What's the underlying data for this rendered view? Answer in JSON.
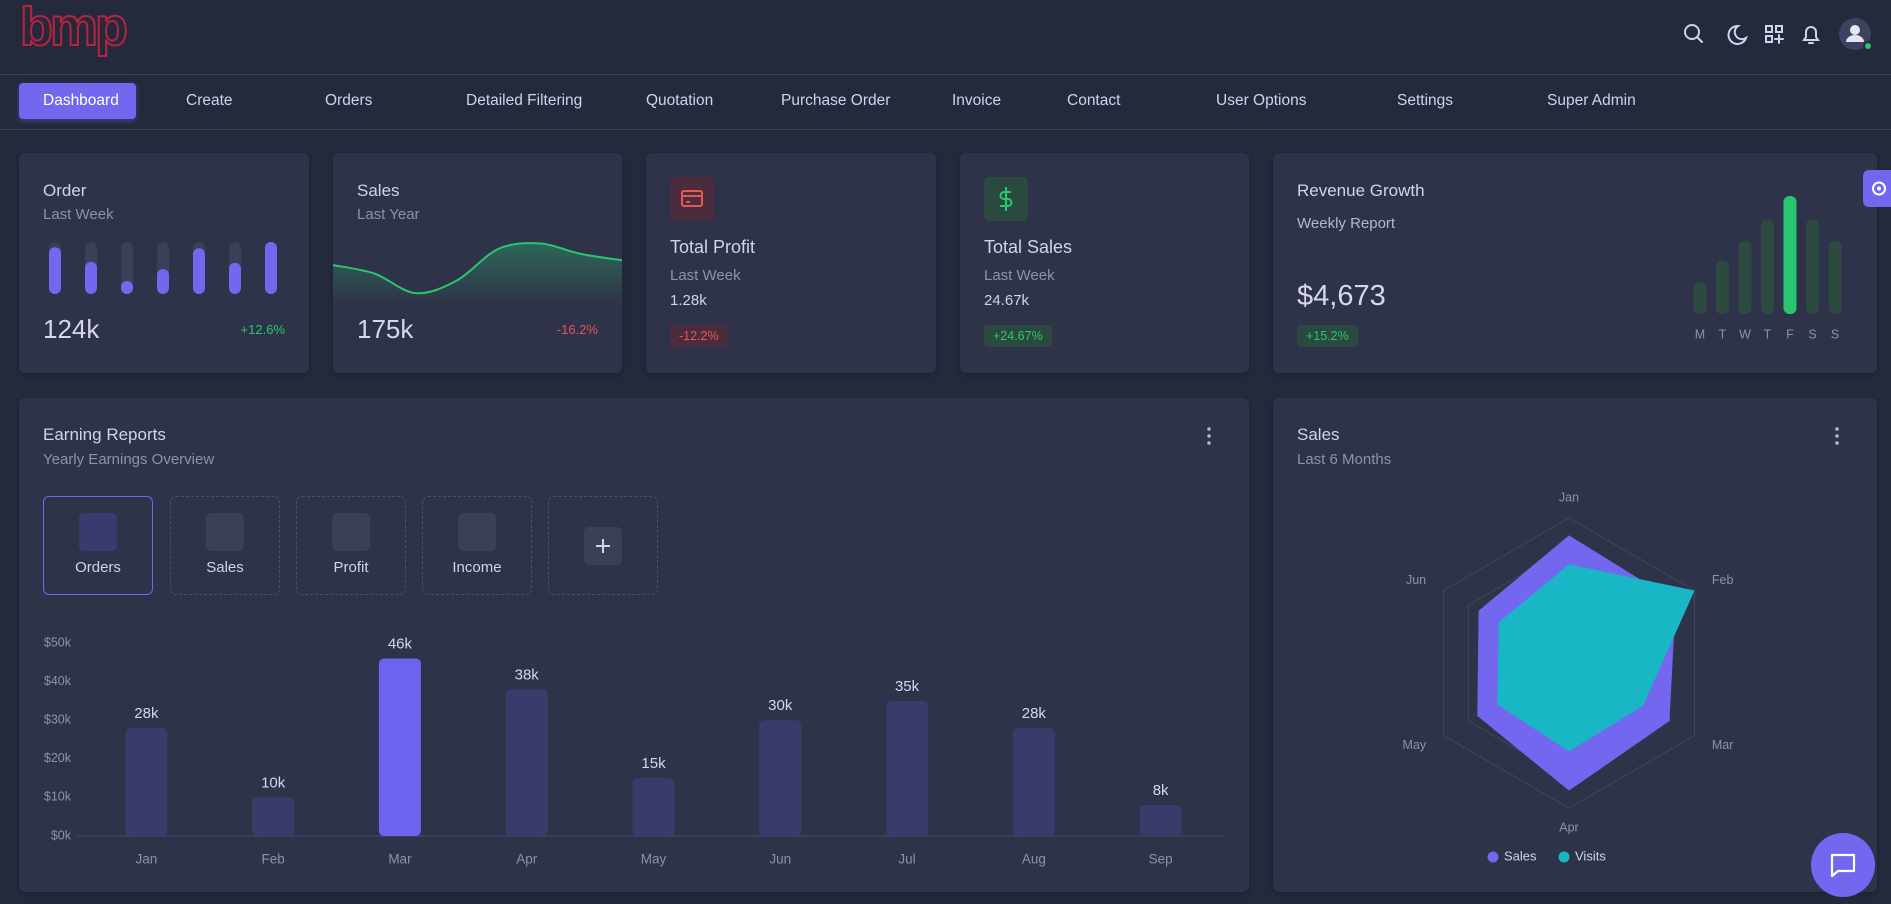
{
  "header": {
    "logo": "bmp"
  },
  "nav": [
    "Dashboard",
    "Create",
    "Orders",
    "Detailed Filtering",
    "Quotation",
    "Purchase Order",
    "Invoice",
    "Contact",
    "User Options",
    "Settings",
    "Super Admin"
  ],
  "stats": [
    {
      "title": "Total Profit",
      "subtitle": "Last Week",
      "value": "1.28k",
      "change": "-12.2%"
    },
    {
      "title": "Total Sales",
      "subtitle": "Last Week",
      "value": "24.67k",
      "change": "+24.67%"
    }
  ],
  "chart_data": [
    {
      "type": "bar",
      "title": "Order",
      "subtitle": "Last Week",
      "total": "124k",
      "change": "+12.6%",
      "values": [
        90,
        62,
        25,
        48,
        88,
        60,
        100
      ],
      "ylim": [
        0,
        100
      ],
      "color": "#7367f0"
    },
    {
      "type": "line",
      "title": "Sales",
      "subtitle": "Last Year",
      "total": "175k",
      "change": "-16.2%",
      "values": [
        57,
        45,
        17,
        35,
        80,
        88,
        73,
        64
      ],
      "ylim": [
        0,
        100
      ],
      "color": "#28c76f"
    },
    {
      "type": "bar",
      "title": "Revenue Growth",
      "subtitle": "Weekly Report",
      "total": "$4,673",
      "change": "+15.2%",
      "categories": [
        "M",
        "T",
        "W",
        "T",
        "F",
        "S",
        "S"
      ],
      "values": [
        27,
        45,
        62,
        80,
        100,
        80,
        62
      ],
      "ylim": [
        0,
        100
      ],
      "colors": [
        "#2d4a40",
        "#2d4a40",
        "#2d4a40",
        "#2d4a40",
        "#28c76f",
        "#2d4a40",
        "#2d4a40"
      ]
    },
    {
      "type": "bar",
      "title": "Earning Reports",
      "subtitle": "Yearly Earnings Overview",
      "tabs": [
        "Orders",
        "Sales",
        "Profit",
        "Income"
      ],
      "categories": [
        "Jan",
        "Feb",
        "Mar",
        "Apr",
        "May",
        "Jun",
        "Jul",
        "Aug",
        "Sep"
      ],
      "values": [
        28000,
        10000,
        46000,
        38000,
        15000,
        30000,
        35000,
        28000,
        8000
      ],
      "value_labels": [
        "28k",
        "10k",
        "46k",
        "38k",
        "15k",
        "30k",
        "35k",
        "28k",
        "8k"
      ],
      "colors": [
        "#393c6a",
        "#393c6a",
        "#6c63ee",
        "#393c6a",
        "#393c6a",
        "#393c6a",
        "#393c6a",
        "#393c6a",
        "#393c6a"
      ],
      "ylim": [
        0,
        50000
      ],
      "yticks": [
        {
          "value": 0,
          "label": "$0k"
        },
        {
          "value": 10000,
          "label": "$10k"
        },
        {
          "value": 20000,
          "label": "$20k"
        },
        {
          "value": 30000,
          "label": "$30k"
        },
        {
          "value": 40000,
          "label": "$40k"
        },
        {
          "value": 50000,
          "label": "$50k"
        }
      ],
      "grid": false
    },
    {
      "type": "radar",
      "title": "Sales",
      "subtitle": "Last 6 Months",
      "categories": [
        "Jan",
        "Feb",
        "Mar",
        "Apr",
        "May",
        "Jun"
      ],
      "rlim": [
        0,
        100
      ],
      "series": [
        {
          "name": "Sales",
          "color": "#7367f0",
          "values": [
            88,
            85,
            80,
            88,
            73,
            72
          ]
        },
        {
          "name": "Visits",
          "color": "#19b6c6",
          "values": [
            68,
            100,
            59,
            61,
            57,
            56
          ]
        }
      ]
    }
  ]
}
